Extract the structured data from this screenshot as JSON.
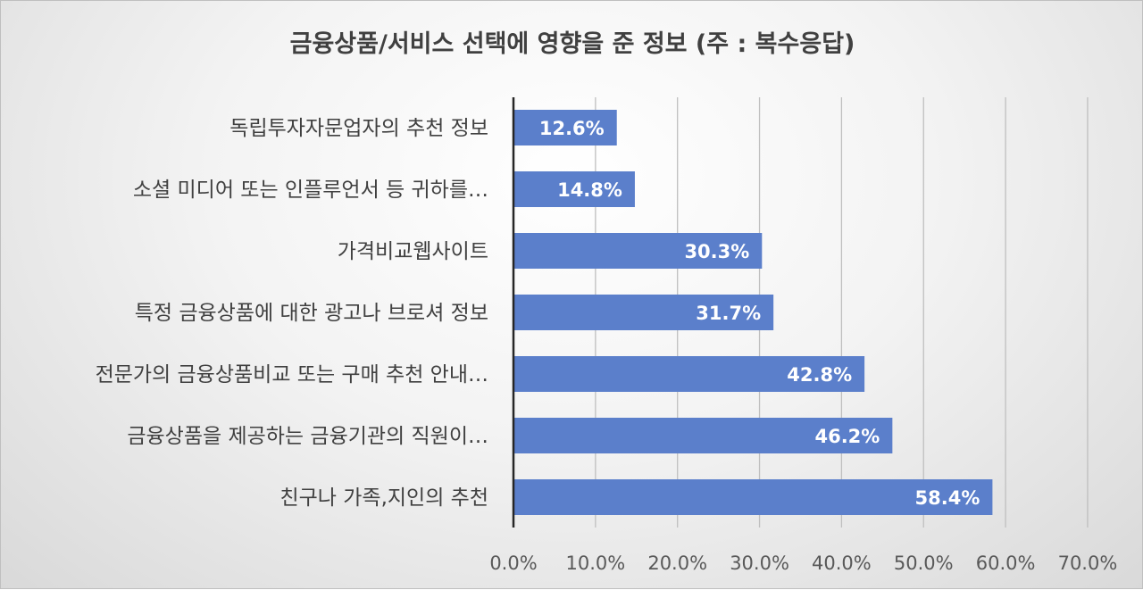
{
  "chart_data": {
    "type": "bar",
    "orientation": "horizontal",
    "title": "금융상품/서비스 선택에 영향을 준 정보 (주 : 복수응답)",
    "categories": [
      "독립투자자문업자의 추천 정보",
      "소셜 미디어 또는 인플루언서 등 귀하를…",
      "가격비교웹사이트",
      "특정 금융상품에 대한 광고나 브로셔 정보",
      "전문가의 금융상품비교 또는 구매 추천 안내…",
      "금융상품을 제공하는 금융기관의 직원이…",
      "친구나 가족,지인의 추천"
    ],
    "values": [
      12.6,
      14.8,
      30.3,
      31.7,
      42.8,
      46.2,
      58.4
    ],
    "data_labels": [
      "12.6%",
      "14.8%",
      "30.3%",
      "31.7%",
      "42.8%",
      "46.2%",
      "58.4%"
    ],
    "xlim": [
      0,
      70
    ],
    "x_ticks": [
      "0.0%",
      "10.0%",
      "20.0%",
      "30.0%",
      "40.0%",
      "50.0%",
      "60.0%",
      "70.0%"
    ],
    "grid": true,
    "bar_color": "#5b7fcb",
    "xlabel": "",
    "ylabel": ""
  }
}
